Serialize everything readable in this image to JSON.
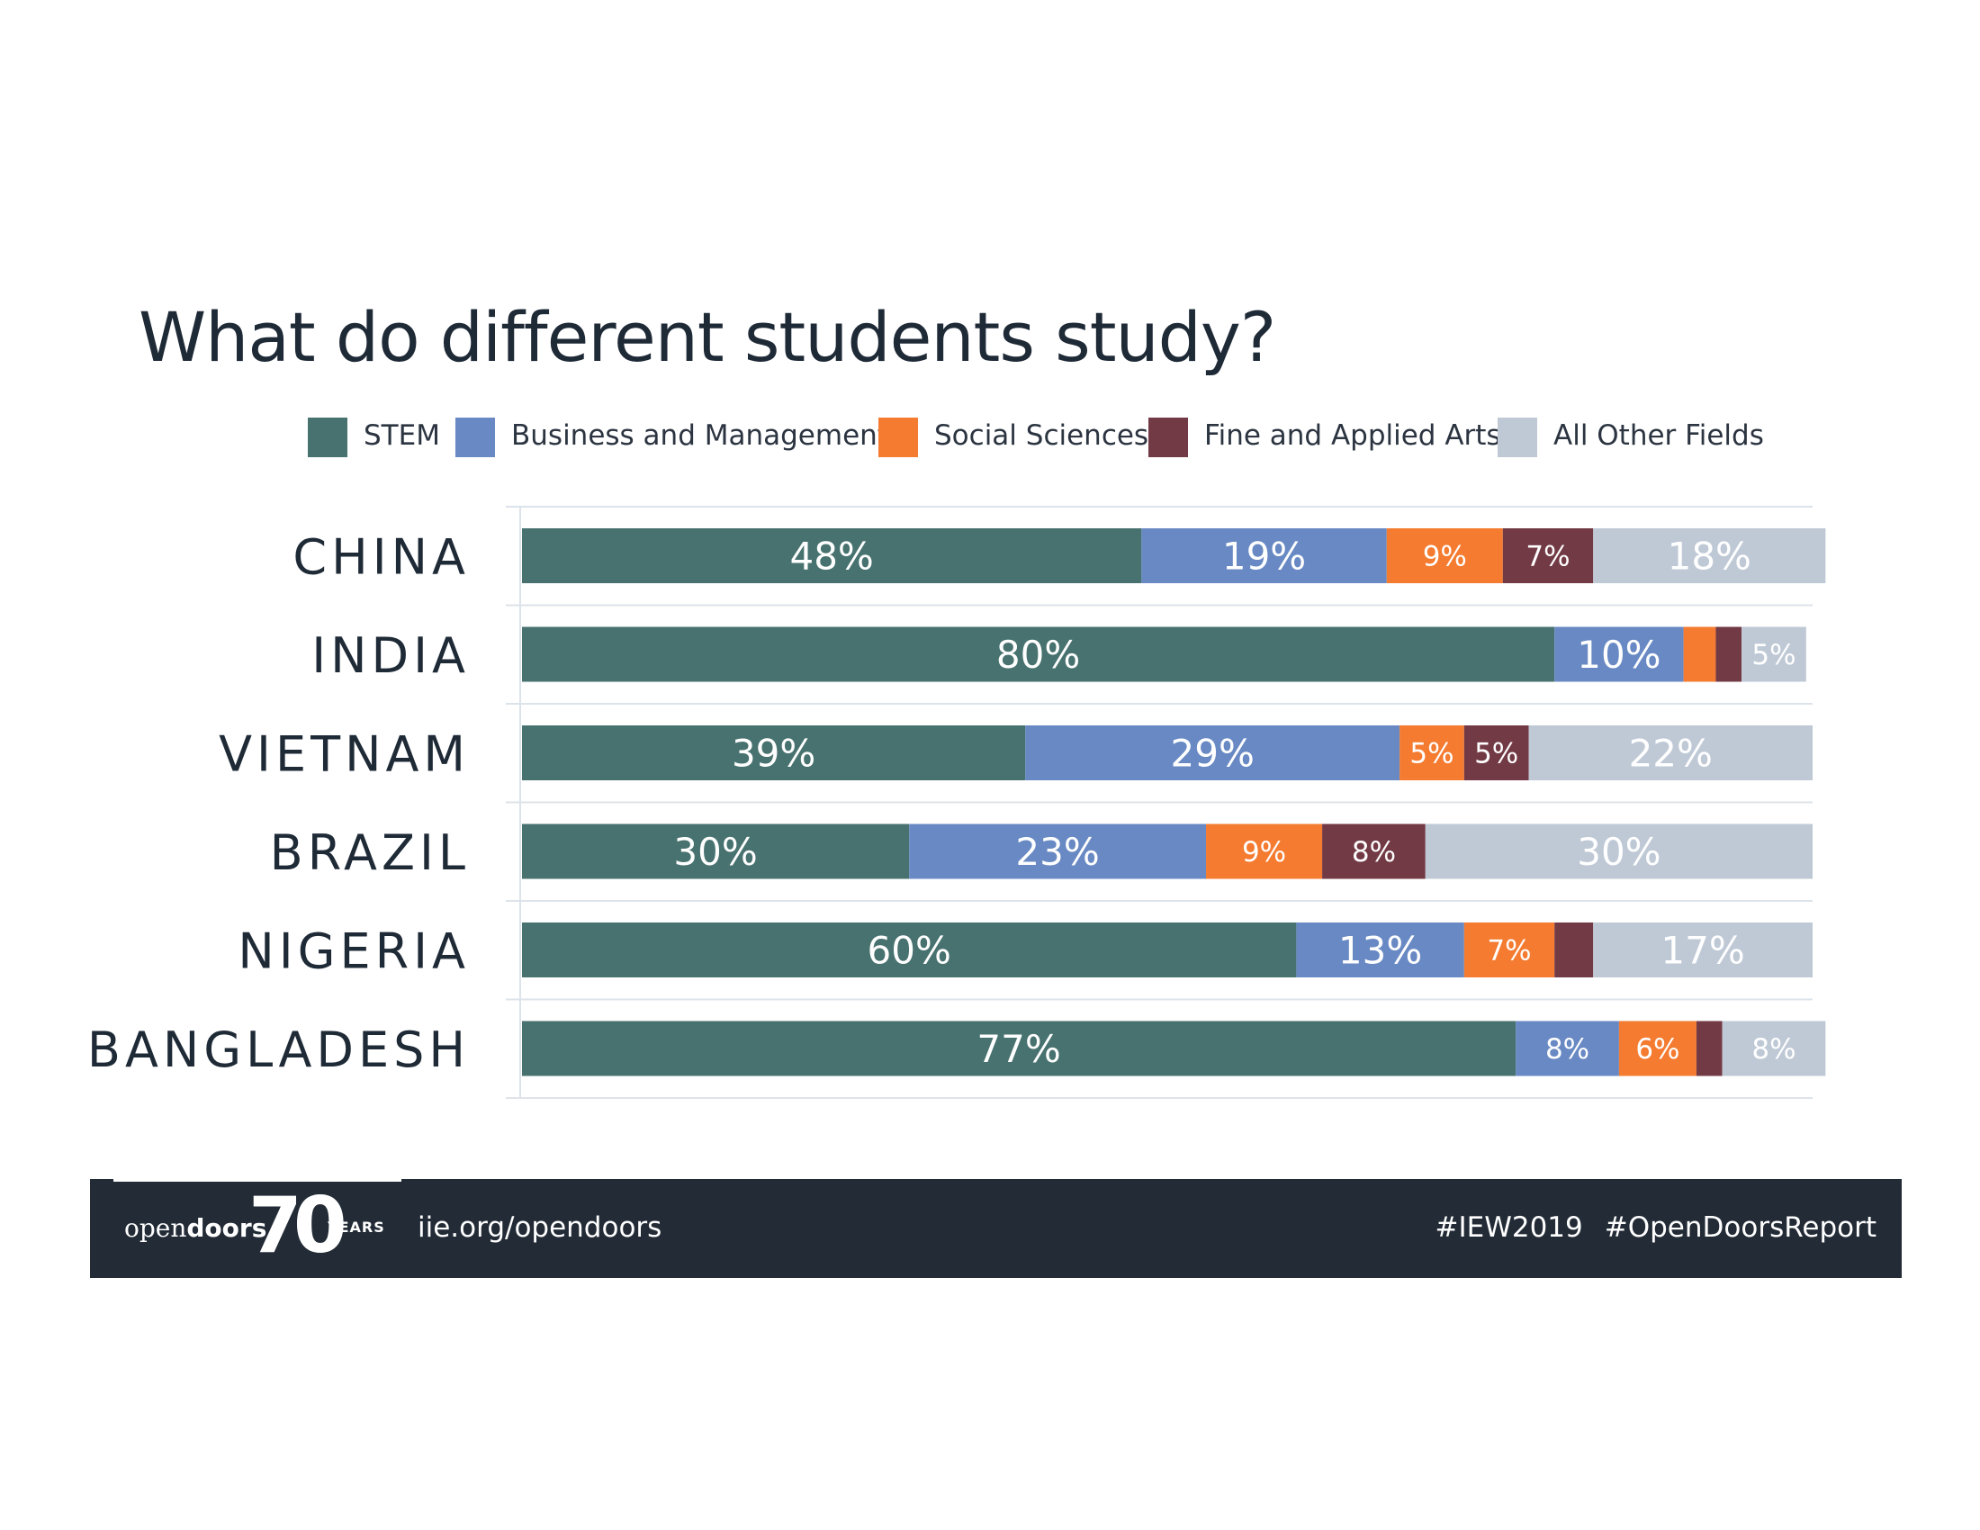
{
  "chart_data": {
    "type": "bar",
    "orientation": "horizontal",
    "stacked": true,
    "title": "What do different students study?",
    "legend_position": "top",
    "categories": [
      "CHINA",
      "INDIA",
      "VIETNAM",
      "BRAZIL",
      "NIGERIA",
      "BANGLADESH"
    ],
    "series": [
      {
        "name": "STEM",
        "color": "#47726f",
        "values": [
          48,
          80,
          39,
          30,
          60,
          77
        ],
        "labels": [
          "48%",
          "80%",
          "39%",
          "30%",
          "60%",
          "77%"
        ]
      },
      {
        "name": "Business and Management",
        "color": "#6889c3",
        "values": [
          19,
          10,
          29,
          23,
          13,
          8
        ],
        "labels": [
          "19%",
          "10%",
          "29%",
          "23%",
          "13%",
          "8%"
        ]
      },
      {
        "name": "Social Sciences",
        "color": "#f47b30",
        "values": [
          9,
          2.5,
          5,
          9,
          7,
          6
        ],
        "labels": [
          "9%",
          "",
          "5%",
          "9%",
          "7%",
          "6%"
        ]
      },
      {
        "name": "Fine and Applied Arts",
        "color": "#723a45",
        "values": [
          7,
          2,
          5,
          8,
          3,
          2
        ],
        "labels": [
          "7%",
          "",
          "5%",
          "8%",
          "",
          ""
        ]
      },
      {
        "name": "All Other Fields",
        "color": "#bfc9d6",
        "values": [
          18,
          5,
          22,
          30,
          17,
          8
        ],
        "labels": [
          "18%",
          "5%",
          "22%",
          "30%",
          "17%",
          "8%"
        ]
      }
    ],
    "xlim": [
      0,
      100
    ]
  },
  "footer": {
    "logo_text_open": "open",
    "logo_text_doors": "doors",
    "logo_number": "70",
    "logo_years": "YEARS",
    "url": "iie.org/opendoors",
    "hashtag_1": "#IEW2019",
    "hashtag_2": "#OpenDoorsReport"
  },
  "colors": {
    "footer_bg": "#222b36",
    "title": "#1f2a37",
    "grid": "#dde3ea"
  }
}
